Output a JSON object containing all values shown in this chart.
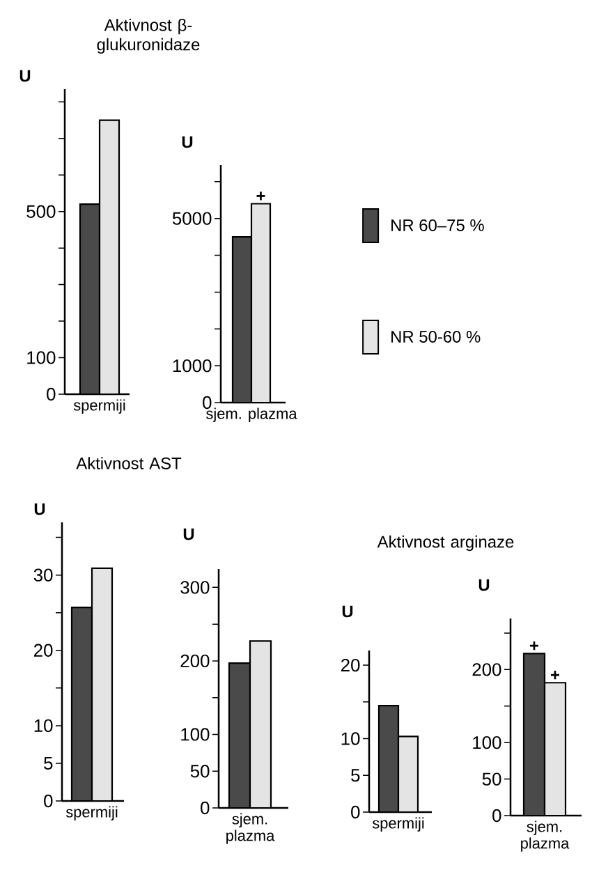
{
  "chart_data": [
    {
      "type": "bar",
      "title": "Aktivnost β-glukuronidaze",
      "ylabel": "U",
      "categories": [
        "spermiji"
      ],
      "series": [
        {
          "color": "#4a4a4a",
          "values": [
            520
          ]
        },
        {
          "color": "#e4e4e4",
          "values": [
            750
          ]
        }
      ],
      "ylim": [
        0,
        835
      ],
      "yticks": [
        0,
        100,
        {
          "value": 200,
          "label": null
        },
        {
          "value": 300,
          "label": null
        },
        {
          "value": 400,
          "label": null
        },
        500,
        {
          "value": 600,
          "label": null
        },
        {
          "value": 700,
          "label": null
        },
        {
          "value": 800,
          "label": null
        }
      ]
    },
    {
      "type": "bar",
      "ylabel": "U",
      "categories": [
        "sjem. plazma"
      ],
      "series": [
        {
          "name": "NR 60–75 %",
          "color": "#4a4a4a",
          "values": [
            4500
          ]
        },
        {
          "name": "NR 50-60 %",
          "color": "#e4e4e4",
          "values": [
            5400
          ]
        }
      ],
      "ylim": [
        0,
        6450
      ],
      "yticks": [
        0,
        1000,
        {
          "value": 2000,
          "label": null
        },
        {
          "value": 3000,
          "label": null
        },
        {
          "value": 4000,
          "label": null
        },
        5000,
        {
          "value": 6000,
          "label": null
        }
      ],
      "legend": "right",
      "annotations": [
        {
          "text": "+",
          "x": "sjem. plazma",
          "y": 5400
        }
      ]
    },
    {
      "type": "bar",
      "title": "Aktivnost AST",
      "ylabel": "U",
      "categories": [
        "spermiji"
      ],
      "series": [
        {
          "color": "#4a4a4a",
          "values": [
            25.7
          ]
        },
        {
          "color": "#e4e4e4",
          "values": [
            30.9
          ]
        }
      ],
      "ylim": [
        0,
        37
      ],
      "yticks": [
        0,
        5,
        10,
        {
          "value": 15,
          "label": null
        },
        20,
        {
          "value": 25,
          "label": null
        },
        30,
        {
          "value": 35,
          "label": null
        }
      ]
    },
    {
      "type": "bar",
      "ylabel": "U",
      "categories": [
        "sjem. plazma"
      ],
      "series": [
        {
          "color": "#4a4a4a",
          "values": [
            197
          ]
        },
        {
          "color": "#e4e4e4",
          "values": [
            227
          ]
        }
      ],
      "ylim": [
        0,
        325
      ],
      "yticks": [
        0,
        50,
        100,
        {
          "value": 150,
          "label": null
        },
        200,
        {
          "value": 250,
          "label": null
        },
        300
      ]
    },
    {
      "type": "bar",
      "title": "Aktivnost arginaze",
      "ylabel": "U",
      "categories": [
        "spermiji"
      ],
      "series": [
        {
          "color": "#4a4a4a",
          "values": [
            14.5
          ]
        },
        {
          "color": "#e4e4e4",
          "values": [
            10.3
          ]
        }
      ],
      "ylim": [
        0,
        22
      ],
      "yticks": [
        0,
        5,
        10,
        {
          "value": 15,
          "label": null
        },
        20
      ]
    },
    {
      "type": "bar",
      "ylabel": "U",
      "categories": [
        "sjem. plazma"
      ],
      "series": [
        {
          "color": "#4a4a4a",
          "values": [
            222
          ]
        },
        {
          "color": "#e4e4e4",
          "values": [
            182
          ]
        }
      ],
      "ylim": [
        0,
        270
      ],
      "yticks": [
        0,
        50,
        100,
        {
          "value": 150,
          "label": null
        },
        200,
        {
          "value": 250,
          "label": null
        }
      ],
      "annotations": [
        {
          "text": "+",
          "x": "sjem. plazma",
          "y": 222
        },
        {
          "text": "+",
          "x": "sjem. plazma",
          "y": 182
        }
      ]
    }
  ]
}
